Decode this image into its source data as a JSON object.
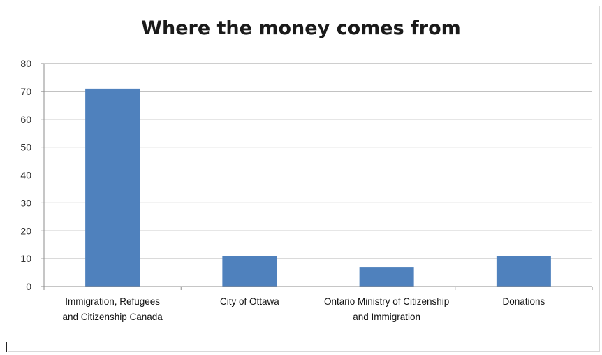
{
  "chart_data": {
    "type": "bar",
    "title": "Where the money comes from",
    "xlabel": "",
    "ylabel": "",
    "categories": [
      [
        "Immigration, Refugees",
        "and Citizenship Canada"
      ],
      [
        "City of Ottawa"
      ],
      [
        "Ontario Ministry of Citizenship",
        "and Immigration"
      ],
      [
        "Donations"
      ]
    ],
    "values": [
      71,
      11,
      7,
      11
    ],
    "ylim": [
      0,
      80
    ],
    "yticks": [
      0,
      10,
      20,
      30,
      40,
      50,
      60,
      70,
      80
    ],
    "grid": true,
    "legend": "none",
    "bar_color": "#4f81bd",
    "grid_color": "#9e9e9e"
  }
}
